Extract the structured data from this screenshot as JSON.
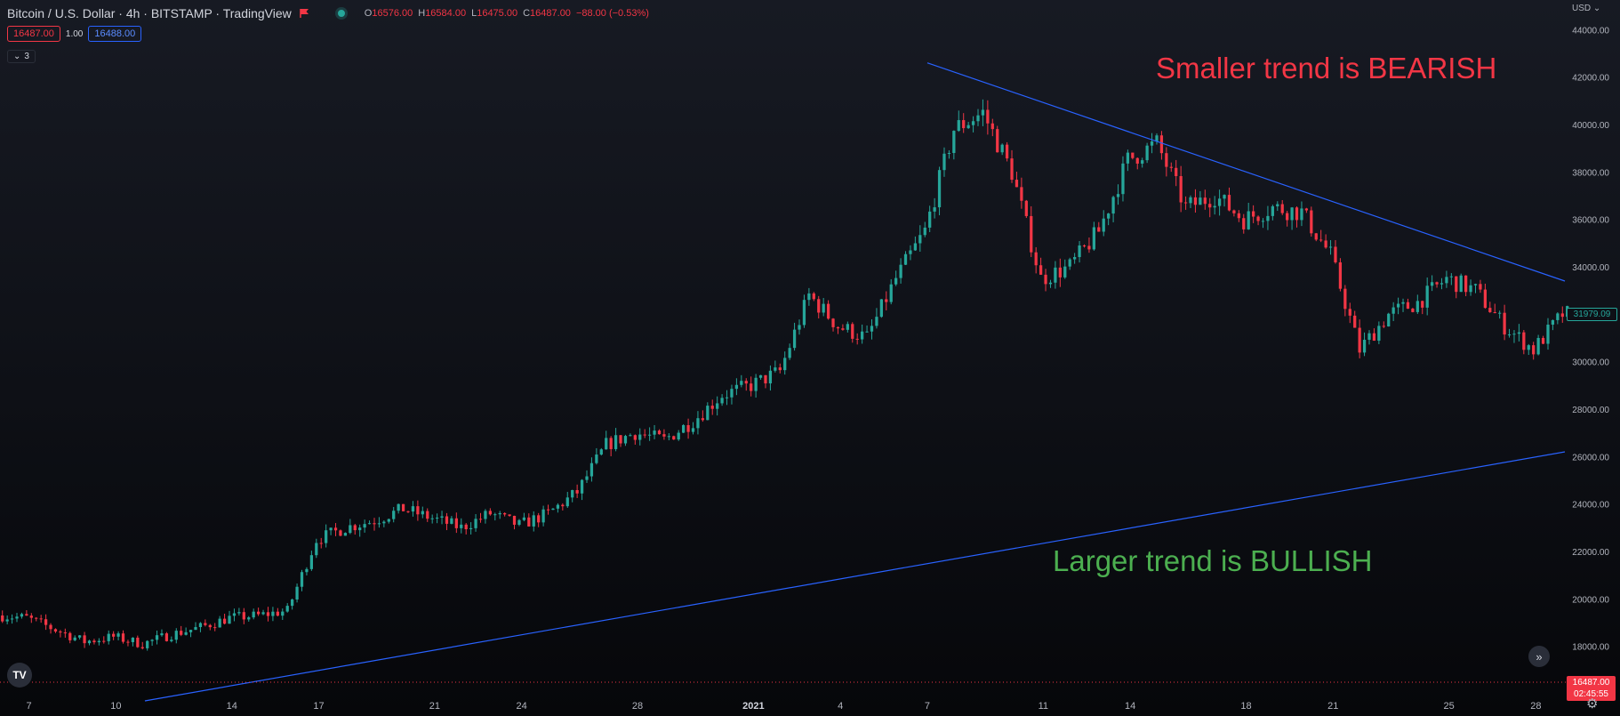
{
  "header": {
    "symbol_title": "Bitcoin / U.S. Dollar · 4h · BITSTAMP · TradingView",
    "ohlc": {
      "open_label": "O",
      "open": "16576.00",
      "high_label": "H",
      "high": "16584.00",
      "low_label": "L",
      "low": "16475.00",
      "close_label": "C",
      "close": "16487.00",
      "change": "−88.00 (−0.53%)"
    },
    "sell_price": "16487.00",
    "spread": "1.00",
    "buy_price": "16488.00",
    "indicator_count": "3",
    "currency": "USD"
  },
  "annotations": {
    "bearish": "Smaller trend is BEARISH",
    "bullish": "Larger trend is BULLISH"
  },
  "price_axis": {
    "last_price": "16487.00",
    "countdown": "02:45:55",
    "marker_price": "31979.09"
  },
  "logo_text": "TV",
  "colors": {
    "up": "#26a69a",
    "down": "#f23645",
    "trendline": "#2962ff",
    "bearish_text": "#f23645",
    "bullish_text": "#4caf50"
  },
  "chart_data": {
    "type": "candlestick",
    "ylim": [
      16000,
      44500
    ],
    "y_ticks": [
      18000,
      20000,
      22000,
      24000,
      26000,
      28000,
      30000,
      32000,
      34000,
      36000,
      38000,
      40000,
      42000,
      44000
    ],
    "y_tick_labels": [
      "18000.00",
      "20000.00",
      "22000.00",
      "24000.00",
      "26000.00",
      "28000.00",
      "30000.00",
      "32000.00",
      "34000.00",
      "36000.00",
      "38000.00",
      "40000.00",
      "42000.00",
      "44000.00"
    ],
    "x_range": [
      "2020-12-06",
      "2021-01-29"
    ],
    "x_ticks": [
      {
        "date": "2020-12-07",
        "label": "7"
      },
      {
        "date": "2020-12-10",
        "label": "10"
      },
      {
        "date": "2020-12-14",
        "label": "14"
      },
      {
        "date": "2020-12-17",
        "label": "17"
      },
      {
        "date": "2020-12-21",
        "label": "21"
      },
      {
        "date": "2020-12-24",
        "label": "24"
      },
      {
        "date": "2020-12-28",
        "label": "28"
      },
      {
        "date": "2021-01-01",
        "label": "2021"
      },
      {
        "date": "2021-01-04",
        "label": "4"
      },
      {
        "date": "2021-01-07",
        "label": "7"
      },
      {
        "date": "2021-01-11",
        "label": "11"
      },
      {
        "date": "2021-01-14",
        "label": "14"
      },
      {
        "date": "2021-01-18",
        "label": "18"
      },
      {
        "date": "2021-01-21",
        "label": "21"
      },
      {
        "date": "2021-01-25",
        "label": "25"
      },
      {
        "date": "2021-01-28",
        "label": "28"
      }
    ],
    "close_path": [
      [
        "2020-12-06",
        19300
      ],
      [
        "2020-12-07",
        19200
      ],
      [
        "2020-12-08",
        18700
      ],
      [
        "2020-12-09",
        18200
      ],
      [
        "2020-12-10",
        18400
      ],
      [
        "2020-12-11",
        18100
      ],
      [
        "2020-12-12",
        18500
      ],
      [
        "2020-12-13",
        18800
      ],
      [
        "2020-12-14",
        19200
      ],
      [
        "2020-12-15",
        19300
      ],
      [
        "2020-12-16",
        19500
      ],
      [
        "2020-12-17",
        22500
      ],
      [
        "2020-12-18",
        23000
      ],
      [
        "2020-12-19",
        23300
      ],
      [
        "2020-12-20",
        23800
      ],
      [
        "2020-12-21",
        23400
      ],
      [
        "2020-12-22",
        23000
      ],
      [
        "2020-12-23",
        23600
      ],
      [
        "2020-12-24",
        23100
      ],
      [
        "2020-12-25",
        23600
      ],
      [
        "2020-12-26",
        24500
      ],
      [
        "2020-12-27",
        26500
      ],
      [
        "2020-12-28",
        27000
      ],
      [
        "2020-12-29",
        26700
      ],
      [
        "2020-12-30",
        27500
      ],
      [
        "2020-12-31",
        28600
      ],
      [
        "2021-01-01",
        29000
      ],
      [
        "2021-01-02",
        29600
      ],
      [
        "2021-01-03",
        32800
      ],
      [
        "2021-01-04",
        31500
      ],
      [
        "2021-01-05",
        31000
      ],
      [
        "2021-01-06",
        33500
      ],
      [
        "2021-01-07",
        35500
      ],
      [
        "2021-01-08",
        39800
      ],
      [
        "2021-01-09",
        40500
      ],
      [
        "2021-01-10",
        38000
      ],
      [
        "2021-01-11",
        33500
      ],
      [
        "2021-01-12",
        34000
      ],
      [
        "2021-01-13",
        35500
      ],
      [
        "2021-01-14",
        38500
      ],
      [
        "2021-01-15",
        39200
      ],
      [
        "2021-01-16",
        36500
      ],
      [
        "2021-01-17",
        37000
      ],
      [
        "2021-01-18",
        36000
      ],
      [
        "2021-01-19",
        36500
      ],
      [
        "2021-01-20",
        36300
      ],
      [
        "2021-01-21",
        34500
      ],
      [
        "2021-01-22",
        30500
      ],
      [
        "2021-01-23",
        32000
      ],
      [
        "2021-01-24",
        32500
      ],
      [
        "2021-01-25",
        33500
      ],
      [
        "2021-01-26",
        33000
      ],
      [
        "2021-01-27",
        31500
      ],
      [
        "2021-01-28",
        30500
      ],
      [
        "2021-01-29",
        32000
      ]
    ],
    "trendlines": [
      {
        "name": "",
        "start": [
          "2021-01-07",
          42600
        ],
        "end": [
          "2021-01-29",
          33400
        ]
      },
      {
        "name": "",
        "start": [
          "2020-12-11",
          15700
        ],
        "end": [
          "2021-01-29",
          26200
        ]
      }
    ]
  }
}
